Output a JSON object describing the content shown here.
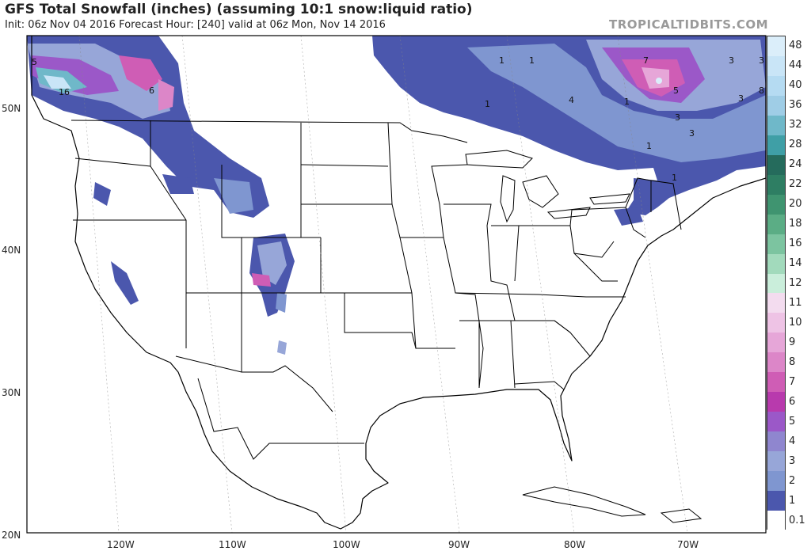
{
  "header": {
    "title": "GFS Total Snowfall (inches) (assuming 10:1 snow:liquid ratio)",
    "subtitle": "Init: 06z Nov 04 2016   Forecast Hour: [240]   valid at 06z Mon, Nov 14 2016",
    "brand": "TROPICALTIDBITS.COM"
  },
  "map": {
    "lat_labels": [
      "50N",
      "40N",
      "30N",
      "20N"
    ],
    "lon_labels": [
      "120W",
      "110W",
      "100W",
      "90W",
      "80W",
      "70W"
    ],
    "contour_labels": [
      "5",
      "16",
      "6",
      "1",
      "1",
      "1",
      "7",
      "5",
      "3",
      "3",
      "3",
      "8",
      "3",
      "1",
      "1",
      "3",
      "4",
      "1"
    ]
  },
  "legend": {
    "levels": [
      {
        "label": "48",
        "color": "#dbeefa"
      },
      {
        "label": "44",
        "color": "#c9e5f7"
      },
      {
        "label": "40",
        "color": "#b5dbf2"
      },
      {
        "label": "36",
        "color": "#9fcde6"
      },
      {
        "label": "32",
        "color": "#6fb8c9"
      },
      {
        "label": "28",
        "color": "#3f9fa6"
      },
      {
        "label": "24",
        "color": "#256b5c"
      },
      {
        "label": "22",
        "color": "#2e7e63"
      },
      {
        "label": "20",
        "color": "#3f9470"
      },
      {
        "label": "18",
        "color": "#5bad85"
      },
      {
        "label": "16",
        "color": "#7cc4a0"
      },
      {
        "label": "14",
        "color": "#a2dabc"
      },
      {
        "label": "12",
        "color": "#caeedb"
      },
      {
        "label": "11",
        "color": "#f3dcef"
      },
      {
        "label": "10",
        "color": "#eec3e5"
      },
      {
        "label": "9",
        "color": "#e6a6d8"
      },
      {
        "label": "8",
        "color": "#dc86c8"
      },
      {
        "label": "7",
        "color": "#cf5db5"
      },
      {
        "label": "6",
        "color": "#b83aad"
      },
      {
        "label": "5",
        "color": "#9b58c8"
      },
      {
        "label": "4",
        "color": "#8f86cf"
      },
      {
        "label": "3",
        "color": "#97a6d8"
      },
      {
        "label": "2",
        "color": "#7f96d0"
      },
      {
        "label": "1",
        "color": "#4b57ad"
      },
      {
        "label": "0.1",
        "color": "#ffffff"
      }
    ]
  }
}
